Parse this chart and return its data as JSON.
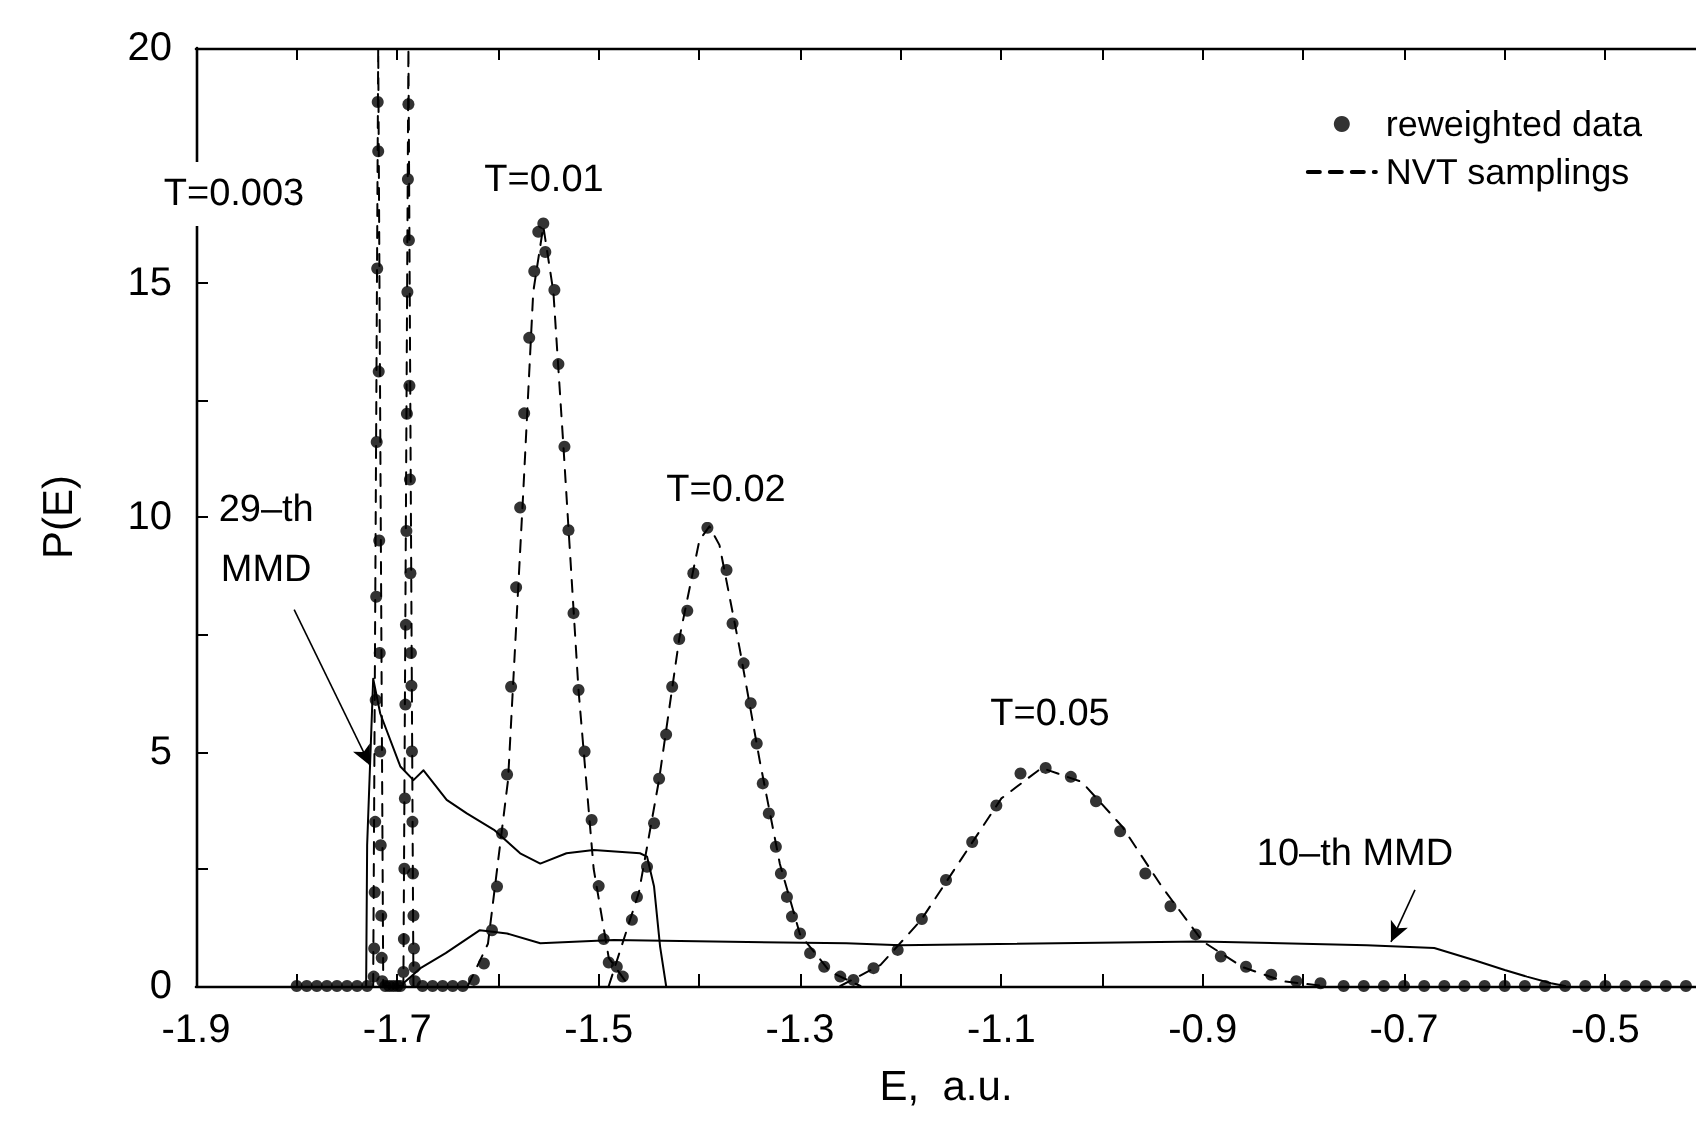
{
  "chart_data": {
    "type": "line",
    "xlabel": "E,  a.u.",
    "ylabel": "P(E)",
    "xlim": [
      -1.9,
      -0.41
    ],
    "ylim": [
      0,
      20
    ],
    "xticks": [
      -1.9,
      {
        "value": -1.8,
        "label": null
      },
      -1.7,
      {
        "value": -1.6,
        "label": null
      },
      -1.5,
      {
        "value": -1.4,
        "label": null
      },
      -1.3,
      {
        "value": -1.2,
        "label": null
      },
      -1.1,
      {
        "value": -1.0,
        "label": null
      },
      -0.9,
      {
        "value": -0.8,
        "label": null
      },
      -0.7,
      {
        "value": -0.6,
        "label": null
      },
      -0.5
    ],
    "yticks": [
      0,
      {
        "value": 2.5,
        "label": null
      },
      5,
      {
        "value": 7.5,
        "label": null
      },
      10,
      {
        "value": 12.5,
        "label": null
      },
      15,
      {
        "value": 17.5,
        "label": null
      },
      20
    ],
    "grid": false,
    "legend": "top right",
    "series": [
      {
        "name": "reweighted data",
        "type": "scatter",
        "marker": "circle",
        "color": "#000000",
        "x": [
          -1.8,
          -1.79,
          -1.78,
          -1.77,
          -1.76,
          -1.75,
          -1.74,
          -1.73,
          -1.7235,
          -1.723,
          -1.7225,
          -1.722,
          -1.7215,
          -1.721,
          -1.7205,
          -1.72,
          -1.7195,
          -1.719,
          -1.7185,
          -1.718,
          -1.7175,
          -1.717,
          -1.7165,
          -1.716,
          -1.7155,
          -1.715,
          -1.712,
          -1.708,
          -1.704,
          -1.7,
          -1.697,
          -1.694,
          -1.6935,
          -1.693,
          -1.6925,
          -1.692,
          -1.6915,
          -1.691,
          -1.6905,
          -1.69,
          -1.6895,
          -1.689,
          -1.6885,
          -1.688,
          -1.6875,
          -1.687,
          -1.6865,
          -1.686,
          -1.6855,
          -1.685,
          -1.6845,
          -1.684,
          -1.6835,
          -1.683,
          -1.6825,
          -1.675,
          -1.665,
          -1.655,
          -1.645,
          -1.635,
          -1.624,
          -1.614,
          -1.606,
          -1.601,
          -1.596,
          -1.591,
          -1.587,
          -1.582,
          -1.578,
          -1.574,
          -1.569,
          -1.564,
          -1.56,
          -1.555,
          -1.553,
          -1.544,
          -1.54,
          -1.534,
          -1.53,
          -1.525,
          -1.52,
          -1.514,
          -1.507,
          -1.5,
          -1.495,
          -1.49,
          -1.482,
          -1.476,
          -1.467,
          -1.462,
          -1.452,
          -1.445,
          -1.44,
          -1.433,
          -1.427,
          -1.42,
          -1.412,
          -1.406,
          -1.392,
          -1.373,
          -1.367,
          -1.356,
          -1.349,
          -1.343,
          -1.337,
          -1.331,
          -1.324,
          -1.319,
          -1.313,
          -1.308,
          -1.3,
          -1.29,
          -1.276,
          -1.26,
          -1.247,
          -1.227,
          -1.203,
          -1.179,
          -1.155,
          -1.129,
          -1.105,
          -1.081,
          -1.056,
          -1.031,
          -1.006,
          -0.982,
          -0.957,
          -0.932,
          -0.907,
          -0.882,
          -0.857,
          -0.832,
          -0.807,
          -0.783,
          -0.76,
          -0.74,
          -0.72,
          -0.7,
          -0.68,
          -0.66,
          -0.64,
          -0.62,
          -0.6,
          -0.58,
          -0.56,
          -0.54,
          -0.52,
          -0.5,
          -0.48,
          -0.46,
          -0.44,
          -0.42
        ],
        "values": [
          0,
          0,
          0,
          0,
          0,
          0,
          0,
          0,
          0.2,
          0.8,
          2.0,
          3.5,
          6.1,
          8.3,
          11.6,
          15.3,
          18.85,
          17.8,
          13.1,
          9.5,
          7.1,
          5.0,
          3.0,
          1.5,
          0.6,
          0.1,
          0,
          0,
          0,
          0,
          0,
          0.3,
          1.0,
          2.5,
          4.0,
          6.0,
          7.7,
          9.7,
          12.2,
          14.8,
          17.2,
          18.8,
          15.9,
          12.8,
          10.8,
          8.8,
          7.1,
          6.4,
          5.0,
          3.5,
          2.4,
          1.5,
          0.8,
          0.4,
          0.1,
          0,
          0,
          0,
          0,
          0,
          0.13,
          0.48,
          1.19,
          2.12,
          3.25,
          4.51,
          6.38,
          8.5,
          10.2,
          12.21,
          13.82,
          15.24,
          16.08,
          16.26,
          15.65,
          14.84,
          13.26,
          11.5,
          9.72,
          7.95,
          6.31,
          5.0,
          3.54,
          2.13,
          1.0,
          0.5,
          0.41,
          0.2,
          1.41,
          1.9,
          2.54,
          3.47,
          4.42,
          5.36,
          6.38,
          7.4,
          8.0,
          8.8,
          9.77,
          8.87,
          7.73,
          6.88,
          6.03,
          5.17,
          4.32,
          3.68,
          2.97,
          2.4,
          1.9,
          1.48,
          1.12,
          0.7,
          0.41,
          0.2,
          0.13,
          0.38,
          0.77,
          1.43,
          2.26,
          3.07,
          3.85,
          4.53,
          4.65,
          4.46,
          3.94,
          3.3,
          2.4,
          1.7,
          1.1,
          0.63,
          0.41,
          0.24,
          0.1,
          0.06,
          0,
          0,
          0,
          0,
          0,
          0,
          0,
          0,
          0,
          0,
          0,
          0,
          0,
          0,
          0,
          0,
          0,
          0
        ]
      },
      {
        "name": "NVT samplings",
        "marker": "none",
        "line_style": "dashed",
        "color": "#000000",
        "x": [
          -1.724,
          -1.719,
          -1.714,
          -1.694,
          -1.689,
          -1.684
        ],
        "values": [
          0,
          20,
          0,
          0,
          20,
          0
        ]
      },
      {
        "marker": "none",
        "line_style": "dashed",
        "color": "#000000",
        "x": [
          -1.63,
          -1.61,
          -1.59,
          -1.575,
          -1.565,
          -1.555,
          -1.545,
          -1.535,
          -1.52,
          -1.505,
          -1.49,
          -1.47
        ],
        "values": [
          0,
          0.9,
          4.4,
          10.5,
          14.8,
          16.2,
          14.8,
          11.5,
          6.3,
          2.5,
          0.6,
          0
        ]
      },
      {
        "marker": "none",
        "line_style": "dashed",
        "color": "#000000",
        "x": [
          -1.49,
          -1.46,
          -1.44,
          -1.42,
          -1.4,
          -1.39,
          -1.38,
          -1.36,
          -1.34,
          -1.32,
          -1.3,
          -1.27,
          -1.24
        ],
        "values": [
          0,
          2.0,
          4.4,
          7.4,
          9.5,
          9.8,
          9.4,
          7.2,
          4.8,
          2.6,
          1.1,
          0.3,
          0
        ]
      },
      {
        "marker": "none",
        "line_style": "dashed",
        "color": "#000000",
        "x": [
          -1.26,
          -1.22,
          -1.18,
          -1.14,
          -1.1,
          -1.06,
          -1.02,
          -0.98,
          -0.94,
          -0.9,
          -0.86,
          -0.82,
          -0.78
        ],
        "values": [
          0,
          0.45,
          1.4,
          2.7,
          4.0,
          4.65,
          4.35,
          3.4,
          2.1,
          0.95,
          0.4,
          0.1,
          0
        ]
      },
      {
        "marker": "none",
        "line_style": "solid",
        "color": "#000000",
        "x": [
          -1.731,
          -1.73,
          -1.724,
          -1.717,
          -1.697,
          -1.684,
          -1.674,
          -1.651,
          -1.631,
          -1.604,
          -1.578,
          -1.558,
          -1.532,
          -1.505,
          -1.459,
          -1.452,
          -1.445,
          -1.439,
          -1.433
        ],
        "values": [
          0,
          3.0,
          6.55,
          5.81,
          4.68,
          4.39,
          4.6,
          3.97,
          3.68,
          3.33,
          2.83,
          2.61,
          2.83,
          2.9,
          2.83,
          2.76,
          2.12,
          0.84,
          0
        ]
      },
      {
        "marker": "none",
        "line_style": "solid",
        "color": "#000000",
        "x": [
          -1.694,
          -1.677,
          -1.652,
          -1.618,
          -1.591,
          -1.558,
          -1.485,
          -1.386,
          -1.254,
          -1.2,
          -0.902,
          -0.737,
          -0.67,
          -0.63,
          -0.6,
          -0.578,
          -0.554,
          -0.54
        ],
        "values": [
          0.06,
          0.38,
          0.7,
          1.19,
          1.12,
          0.91,
          0.98,
          0.95,
          0.91,
          0.87,
          0.95,
          0.87,
          0.81,
          0.55,
          0.34,
          0.2,
          0.06,
          0
        ]
      }
    ],
    "annotations": [
      "T=0.003",
      "T=0.01",
      "T=0.02",
      "T=0.05",
      {
        "text": "29–th\nMMD",
        "x": -1.727,
        "y": 4.7
      },
      {
        "text": "10–th MMD",
        "x": -0.713,
        "y": 0.94
      }
    ]
  }
}
